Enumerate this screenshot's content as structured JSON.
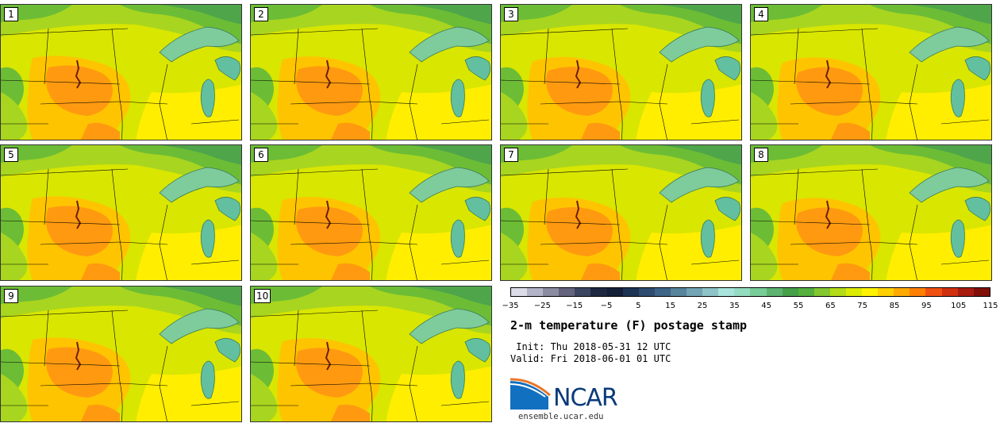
{
  "panels": [
    {
      "label": "1"
    },
    {
      "label": "2"
    },
    {
      "label": "3"
    },
    {
      "label": "4"
    },
    {
      "label": "5"
    },
    {
      "label": "6"
    },
    {
      "label": "7"
    },
    {
      "label": "8"
    },
    {
      "label": "9"
    },
    {
      "label": "10"
    }
  ],
  "colorbar": {
    "ticks": [
      "−35",
      "−25",
      "−15",
      "−5",
      "5",
      "15",
      "25",
      "35",
      "45",
      "55",
      "65",
      "75",
      "85",
      "95",
      "105",
      "115"
    ],
    "colors": [
      "#dcdce8",
      "#b4b4c8",
      "#8c8ca0",
      "#64647e",
      "#3c4660",
      "#1e2840",
      "#142038",
      "#1e3454",
      "#2e4c70",
      "#3e6488",
      "#58849c",
      "#72a4b4",
      "#8ec4c8",
      "#a8e4dc",
      "#94dcc0",
      "#78cc98",
      "#5cb470",
      "#46a048",
      "#55b03e",
      "#84c830",
      "#b4dc18",
      "#dcec00",
      "#fff200",
      "#ffd000",
      "#ffaa00",
      "#ff8000",
      "#f05010",
      "#d03010",
      "#a81c10",
      "#801008"
    ]
  },
  "title": "2-m temperature (F) postage stamp",
  "init": " Init: Thu 2018-05-31 12 UTC",
  "valid": "Valid: Fri 2018-06-01 01 UTC",
  "logo": {
    "text": "NCAR",
    "colors": {
      "blue": "#1270c0",
      "orange": "#e8772a"
    }
  },
  "site": "ensemble.ucar.edu",
  "map_colors": {
    "yellow": "#ffee00",
    "yellow_green": "#d9e600",
    "light_green": "#a8d520",
    "green": "#6cbd35",
    "dark_green": "#4fa54a",
    "lake_green": "#7ecb9c",
    "lake": "#62c0a0",
    "orange": "#ff9a10",
    "light_orange": "#ffc400",
    "border": "#000000"
  }
}
